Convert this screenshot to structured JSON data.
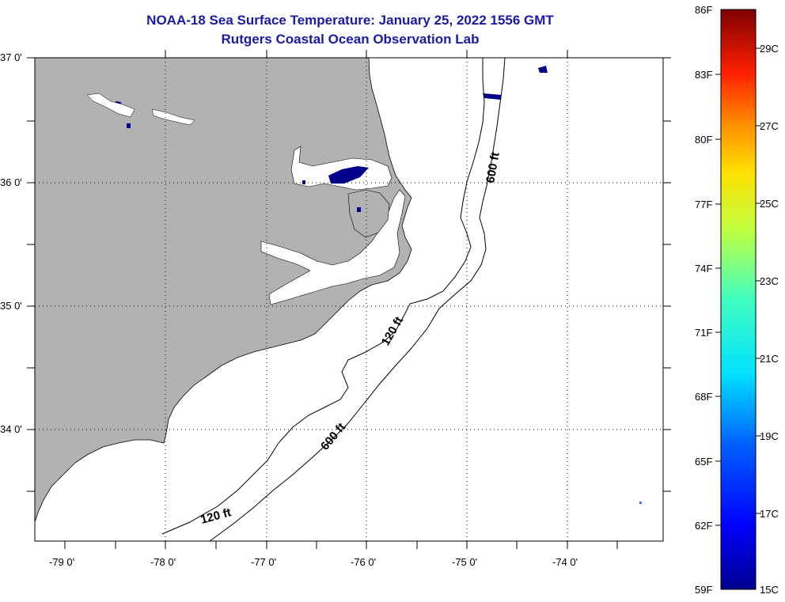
{
  "header": {
    "title": "NOAA-18 Sea Surface Temperature:  January 25, 2022 1556 GMT",
    "subtitle": "Rutgers Coastal Ocean Observation Lab"
  },
  "map": {
    "lat_labels": [
      "37 0'",
      "36 0'",
      "35 0'",
      "34 0'"
    ],
    "lon_labels": [
      "-79 0'",
      "-78 0'",
      "-77 0'",
      "-76 0'",
      "-75 0'",
      "-74 0'"
    ],
    "contour_labels": [
      "600 ft",
      "120 ft",
      "600 ft",
      "120 ft"
    ],
    "land_color": "#b2b2b2",
    "ocean_color": "#ffffff",
    "cold_water_color": "#00008b"
  },
  "colorbar": {
    "f_labels": [
      "86F",
      "83F",
      "80F",
      "77F",
      "74F",
      "71F",
      "68F",
      "65F",
      "62F",
      "59F"
    ],
    "c_labels": [
      "29C",
      "27C",
      "25C",
      "23C",
      "21C",
      "19C",
      "17C",
      "15C"
    ]
  }
}
